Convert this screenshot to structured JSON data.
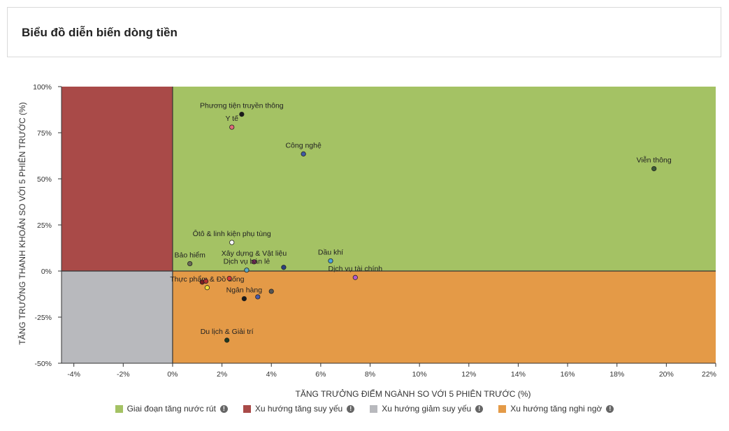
{
  "header": {
    "title": "Biểu đồ diễn biến dòng tiền"
  },
  "chart_data": {
    "type": "scatter",
    "xlabel": "TĂNG TRƯỞNG ĐIỂM NGÀNH SO VỚI 5 PHIÊN TRƯỚC (%)",
    "ylabel": "TĂNG TRƯỞNG THANH KHOẢN SO VỚI 5 PHIÊN TRƯỚC (%)",
    "xlim": [
      -4.5,
      22
    ],
    "ylim": [
      -50,
      100
    ],
    "xticks": [
      -4,
      -2,
      0,
      2,
      4,
      6,
      8,
      10,
      12,
      14,
      16,
      18,
      20,
      22
    ],
    "xtick_labels": [
      "-4%",
      "-2%",
      "0%",
      "2%",
      "4%",
      "6%",
      "8%",
      "10%",
      "12%",
      "14%",
      "16%",
      "18%",
      "20%",
      "22%"
    ],
    "yticks": [
      -50,
      -25,
      0,
      25,
      50,
      75,
      100
    ],
    "ytick_labels": [
      "-50%",
      "-25%",
      "0%",
      "25%",
      "50%",
      "75%",
      "100%"
    ],
    "quadrants": [
      {
        "name": "Giai đoạn tăng nước rút",
        "color": "#a4c264",
        "x": [
          0,
          22
        ],
        "y": [
          0,
          100
        ]
      },
      {
        "name": "Xu hướng tăng suy yếu",
        "color": "#a94a48",
        "x": [
          -4.5,
          0
        ],
        "y": [
          0,
          100
        ]
      },
      {
        "name": "Xu hướng giảm suy yếu",
        "color": "#b8b9bd",
        "x": [
          -4.5,
          0
        ],
        "y": [
          -50,
          0
        ]
      },
      {
        "name": "Xu hướng tăng nghi ngờ",
        "color": "#e49a47",
        "x": [
          0,
          22
        ],
        "y": [
          -50,
          0
        ]
      }
    ],
    "points": [
      {
        "label": "Phương tiện truyền thông",
        "x": 2.8,
        "y": 85,
        "color": "#1a1a1a"
      },
      {
        "label": "Y tế",
        "x": 2.4,
        "y": 78,
        "color": "#e06b7a"
      },
      {
        "label": "Công nghệ",
        "x": 5.3,
        "y": 63.5,
        "color": "#3f5aa5"
      },
      {
        "label": "Viễn thông",
        "x": 19.5,
        "y": 55.5,
        "color": "#3a5a36"
      },
      {
        "label": "Ôtô & linh kiện phụ tùng",
        "x": 2.4,
        "y": 15.5,
        "color": "#ffffff"
      },
      {
        "label": "Bảo hiểm",
        "x": 0.7,
        "y": 4,
        "color": "#6b6b58"
      },
      {
        "label": "Xây dựng & Vật liệu",
        "x": 3.3,
        "y": 5,
        "color": "#8e2a6a"
      },
      {
        "label": "Dịch vụ bán lẻ",
        "x": 3.0,
        "y": 0.5,
        "color": "#5aa7c8"
      },
      {
        "label": "Dầu khí",
        "x": 6.4,
        "y": 5.5,
        "color": "#4aa3e0"
      },
      {
        "label": "Dịch vụ tài chính",
        "x": 7.4,
        "y": -3.5,
        "color": "#b05ad0"
      },
      {
        "label": "Thực phẩm & Đồ uống",
        "x": 1.4,
        "y": -9,
        "color": "#f2e03a"
      },
      {
        "label": "Ngân hàng",
        "x": 2.9,
        "y": -15,
        "color": "#1a1a1a"
      },
      {
        "label": "Du lịch & Giải trí",
        "x": 2.2,
        "y": -37.5,
        "color": "#1f3b1f"
      },
      {
        "label": "",
        "x": 4.5,
        "y": 2,
        "color": "#2b3f80"
      },
      {
        "label": "",
        "x": 1.2,
        "y": -6,
        "color": "#7a1f1f"
      },
      {
        "label": "",
        "x": 1.35,
        "y": -5.5,
        "color": "#b03030"
      },
      {
        "label": "",
        "x": 2.3,
        "y": -4,
        "color": "#d63c3c"
      },
      {
        "label": "",
        "x": 3.45,
        "y": -14,
        "color": "#4a5aa8"
      },
      {
        "label": "",
        "x": 4.0,
        "y": -11,
        "color": "#555555"
      }
    ],
    "legend_placement": "bottom",
    "grid": false
  },
  "legend": {
    "items": [
      {
        "label": "Giai đoạn tăng nước rút",
        "color": "#a4c264"
      },
      {
        "label": "Xu hướng tăng suy yếu",
        "color": "#a94a48"
      },
      {
        "label": "Xu hướng giảm suy yếu",
        "color": "#b8b9bd"
      },
      {
        "label": "Xu hướng tăng nghi ngờ",
        "color": "#e49a47"
      }
    ]
  }
}
